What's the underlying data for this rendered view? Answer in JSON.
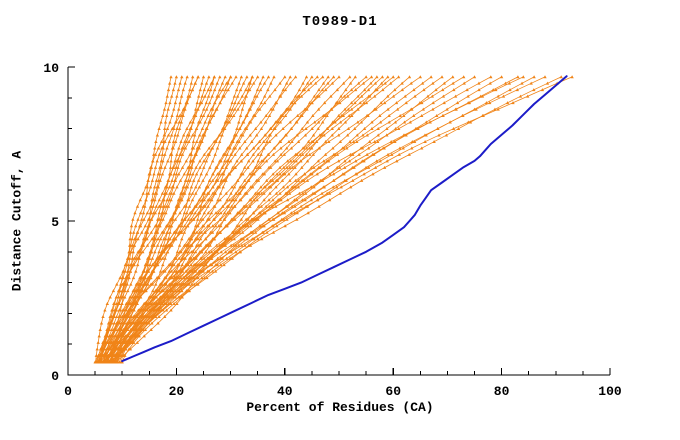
{
  "page": {
    "background": "#ffffff"
  },
  "chart_data": {
    "type": "line",
    "title": "T0989-D1",
    "xlabel": "Percent of Residues (CA)",
    "ylabel": "Distance Cutoff, A",
    "xlim": [
      0,
      100
    ],
    "ylim": [
      0,
      10
    ],
    "x_ticks": [
      0,
      20,
      40,
      60,
      80,
      100
    ],
    "x_minor_step": 5,
    "y_ticks": [
      0,
      5,
      10
    ],
    "y_minor_step": 1,
    "grid": false,
    "legend": "none",
    "colors": {
      "models": "#f08418",
      "best_model": "#1c1cc8",
      "axis": "#000000",
      "text": "#000000"
    },
    "best_model": {
      "name": "highlighted best model curve",
      "points": [
        [
          10,
          0.45
        ],
        [
          12,
          0.6
        ],
        [
          14,
          0.75
        ],
        [
          16,
          0.9
        ],
        [
          19,
          1.1
        ],
        [
          22,
          1.35
        ],
        [
          25,
          1.6
        ],
        [
          28,
          1.85
        ],
        [
          31,
          2.1
        ],
        [
          34,
          2.35
        ],
        [
          37,
          2.6
        ],
        [
          40,
          2.8
        ],
        [
          43,
          3.0
        ],
        [
          46,
          3.25
        ],
        [
          49,
          3.5
        ],
        [
          52,
          3.75
        ],
        [
          55,
          4.0
        ],
        [
          58,
          4.3
        ],
        [
          60,
          4.55
        ],
        [
          62,
          4.8
        ],
        [
          63,
          5.0
        ],
        [
          64,
          5.2
        ],
        [
          65,
          5.5
        ],
        [
          66,
          5.75
        ],
        [
          67,
          6.0
        ],
        [
          69,
          6.25
        ],
        [
          71,
          6.5
        ],
        [
          73,
          6.75
        ],
        [
          75,
          6.95
        ],
        [
          76,
          7.1
        ],
        [
          77,
          7.3
        ],
        [
          78,
          7.5
        ],
        [
          80,
          7.8
        ],
        [
          82,
          8.1
        ],
        [
          84,
          8.45
        ],
        [
          86,
          8.8
        ],
        [
          88,
          9.1
        ],
        [
          90,
          9.4
        ],
        [
          91,
          9.55
        ],
        [
          92,
          9.7
        ]
      ]
    },
    "models": {
      "name": "predicted model ensemble (orange curves)",
      "y_start": 0.42,
      "y_end": 9.68,
      "curve_params_format": [
        "x_at_bottom",
        "x_at_top",
        "shape_exponent",
        "wobble_seed"
      ],
      "curves": [
        [
          5.0,
          19,
          0.85,
          0.05
        ],
        [
          5.5,
          20,
          0.7,
          0.45
        ],
        [
          6.0,
          21,
          1.0,
          0.8
        ],
        [
          5.2,
          22,
          0.9,
          0.2
        ],
        [
          6.5,
          23,
          0.75,
          0.6
        ],
        [
          5.8,
          24,
          1.1,
          0.33
        ],
        [
          7.0,
          25,
          0.8,
          0.9
        ],
        [
          5.4,
          26,
          0.95,
          0.12
        ],
        [
          6.2,
          27,
          0.7,
          0.55
        ],
        [
          6.8,
          28,
          1.05,
          0.72
        ],
        [
          5.6,
          29,
          0.85,
          0.28
        ],
        [
          7.2,
          30,
          0.95,
          0.64
        ],
        [
          5.3,
          31,
          1.15,
          0.41
        ],
        [
          6.4,
          32,
          0.8,
          0.87
        ],
        [
          7.5,
          33,
          1.0,
          0.16
        ],
        [
          5.9,
          34,
          0.9,
          0.5
        ],
        [
          6.6,
          35,
          1.2,
          0.77
        ],
        [
          7.8,
          36,
          0.85,
          0.09
        ],
        [
          5.1,
          24,
          1.3,
          0.68
        ],
        [
          6.1,
          30,
          1.25,
          0.36
        ],
        [
          7.1,
          34,
          0.65,
          0.93
        ],
        [
          5.7,
          27,
          1.18,
          0.58
        ],
        [
          6.3,
          37,
          1.0,
          0.22
        ],
        [
          7.3,
          38,
          0.85,
          0.66
        ],
        [
          5.5,
          40,
          1.1,
          0.44
        ],
        [
          8.0,
          41,
          0.9,
          0.81
        ],
        [
          6.7,
          42,
          1.2,
          0.13
        ],
        [
          7.6,
          44,
          0.8,
          0.57
        ],
        [
          8.5,
          45,
          1.0,
          0.74
        ],
        [
          5.9,
          46,
          1.25,
          0.31
        ],
        [
          6.9,
          48,
          0.95,
          0.88
        ],
        [
          8.2,
          49,
          1.1,
          0.19
        ],
        [
          7.4,
          50,
          1.3,
          0.62
        ],
        [
          6.0,
          52,
          1.05,
          0.4
        ],
        [
          8.8,
          53,
          0.9,
          0.97
        ],
        [
          7.0,
          55,
          1.2,
          0.26
        ],
        [
          6.5,
          56,
          1.35,
          0.7
        ],
        [
          8.3,
          57,
          1.0,
          0.47
        ],
        [
          7.7,
          58,
          1.15,
          0.84
        ],
        [
          6.2,
          59,
          0.95,
          0.11
        ],
        [
          8.6,
          60,
          1.28,
          0.53
        ],
        [
          7.9,
          47,
          1.42,
          0.35
        ],
        [
          6.4,
          61,
          1.2,
          0.6
        ],
        [
          8.1,
          63,
          1.05,
          0.24
        ],
        [
          7.2,
          65,
          1.3,
          0.78
        ],
        [
          6.6,
          67,
          1.12,
          0.42
        ],
        [
          8.9,
          69,
          1.25,
          0.9
        ],
        [
          7.5,
          71,
          1.08,
          0.15
        ],
        [
          8.4,
          73,
          1.35,
          0.67
        ],
        [
          6.8,
          75,
          1.2,
          0.38
        ],
        [
          7.8,
          78,
          1.4,
          0.83
        ],
        [
          8.7,
          80,
          1.28,
          0.21
        ],
        [
          9.2,
          83,
          1.38,
          0.59
        ],
        [
          9.0,
          86,
          1.3,
          0.75
        ],
        [
          9.5,
          88,
          1.42,
          0.46
        ],
        [
          10.0,
          91,
          1.35,
          0.3
        ],
        [
          9.8,
          93,
          1.48,
          0.65
        ],
        [
          8.0,
          84,
          1.5,
          0.1
        ]
      ]
    }
  }
}
